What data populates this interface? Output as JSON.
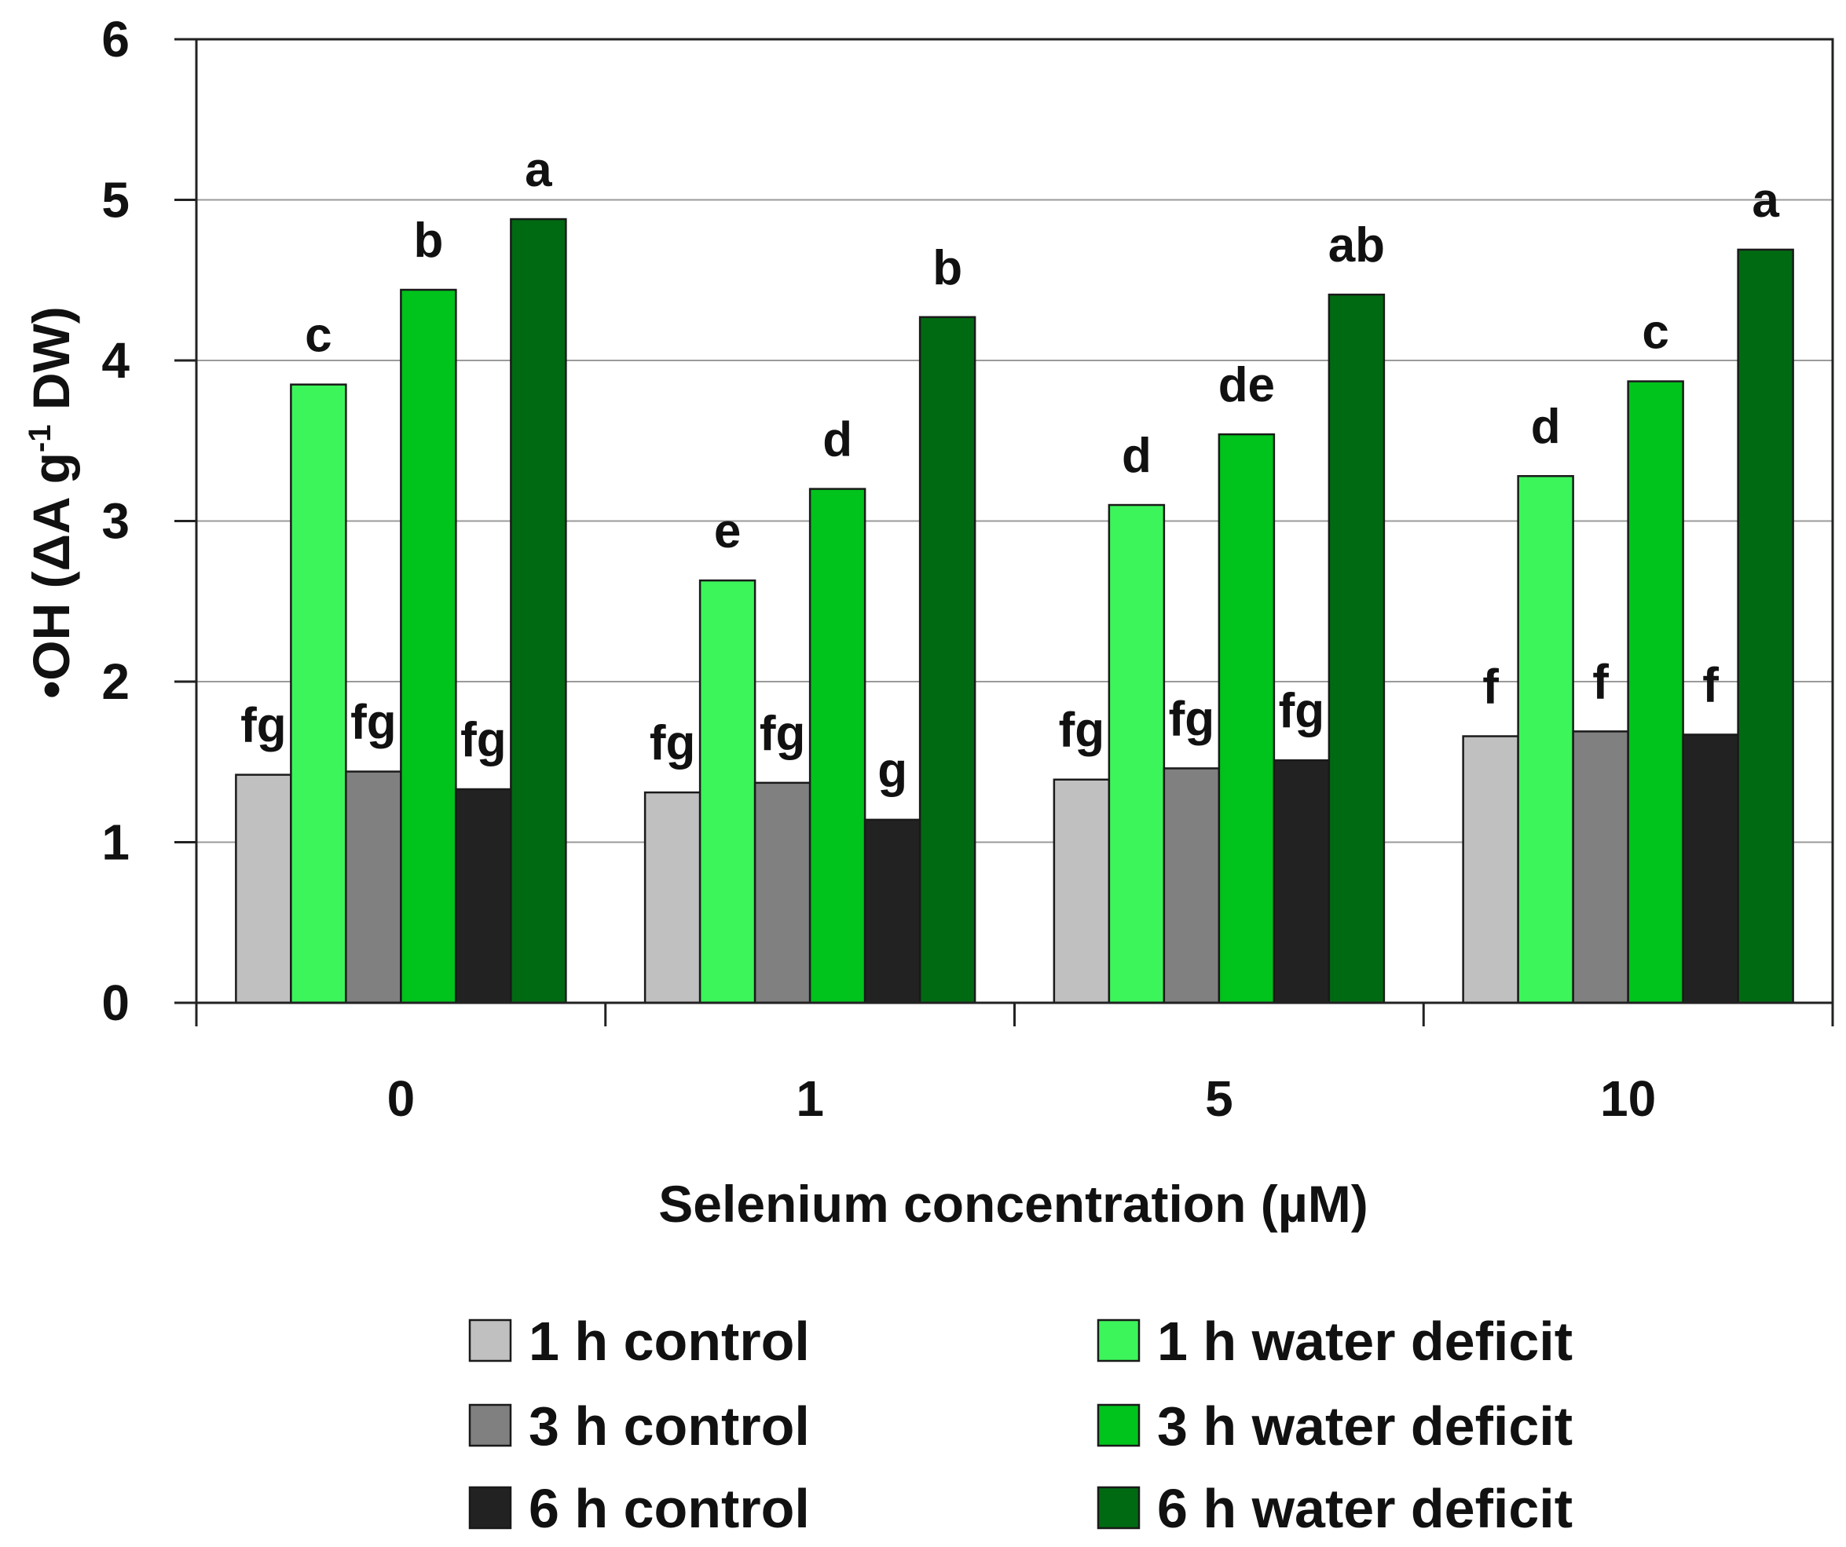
{
  "chart_data": {
    "type": "bar",
    "title": "",
    "xlabel": "Selenium concentration (µM)",
    "ylabel": {
      "prefix": "•OH (ΔA g",
      "superscript": "-1",
      "suffix": " DW)"
    },
    "ylim": [
      0,
      6
    ],
    "yticks": [
      "0",
      "1",
      "2",
      "3",
      "4",
      "5",
      "6"
    ],
    "grid": true,
    "legend_position": "bottom",
    "categories": [
      "0",
      "1",
      "5",
      "10"
    ],
    "series": [
      {
        "name": "1 h control",
        "color": "#c0c0c0",
        "values": [
          1.42,
          1.31,
          1.39,
          1.66
        ],
        "labels": [
          "fg",
          "fg",
          "fg",
          "f"
        ]
      },
      {
        "name": "1 h water deficit",
        "color": "#3cf55a",
        "values": [
          3.85,
          2.63,
          3.1,
          3.28
        ],
        "labels": [
          "c",
          "e",
          "d",
          "d"
        ]
      },
      {
        "name": "3 h control",
        "color": "#808080",
        "values": [
          1.44,
          1.37,
          1.46,
          1.69
        ],
        "labels": [
          "fg",
          "fg",
          "fg",
          "f"
        ]
      },
      {
        "name": "3 h water deficit",
        "color": "#00c31c",
        "values": [
          4.44,
          3.2,
          3.54,
          3.87
        ],
        "labels": [
          "b",
          "d",
          "de",
          "c"
        ]
      },
      {
        "name": "6 h control",
        "color": "#222222",
        "values": [
          1.33,
          1.14,
          1.51,
          1.67
        ],
        "labels": [
          "fg",
          "g",
          "fg",
          "f"
        ]
      },
      {
        "name": "6 h water deficit",
        "color": "#006a12",
        "values": [
          4.88,
          4.27,
          4.41,
          4.69
        ],
        "labels": [
          "a",
          "b",
          "ab",
          "a"
        ]
      }
    ]
  }
}
